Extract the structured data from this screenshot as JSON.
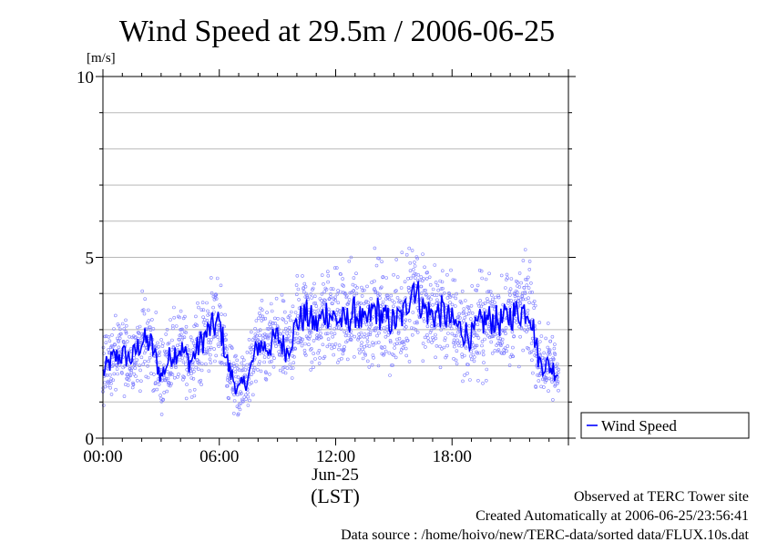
{
  "chart_data": {
    "type": "scatter",
    "title": "Wind Speed at 29.5m / 2006-06-25",
    "y_unit": "[m/s]",
    "ylim": [
      0,
      10
    ],
    "y_major_ticks": [
      0,
      5,
      10
    ],
    "y_grid_step": 1,
    "x_range_hours": [
      0,
      23.5
    ],
    "x_ticks": [
      {
        "hour": 0,
        "label": "00:00"
      },
      {
        "hour": 6,
        "label": "06:00"
      },
      {
        "hour": 12,
        "label": "12:00"
      },
      {
        "hour": 18,
        "label": "18:00"
      }
    ],
    "date_label": "Jun-25",
    "timezone_label": "(LST)",
    "grid": "horizontal",
    "legend": {
      "placement": "right",
      "entries": [
        {
          "name": "Wind Speed",
          "color": "#0000ff"
        }
      ]
    },
    "scatter_color": "#8080ff",
    "line_color": "#0000ff",
    "series": [
      {
        "name": "Wind Speed",
        "x_hours": [
          0.0,
          0.5,
          1.0,
          1.5,
          2.0,
          2.5,
          3.0,
          3.5,
          4.0,
          4.5,
          5.0,
          5.5,
          6.0,
          6.5,
          7.0,
          7.5,
          8.0,
          8.5,
          9.0,
          9.5,
          10.0,
          10.5,
          11.0,
          11.5,
          12.0,
          12.5,
          13.0,
          13.5,
          14.0,
          14.5,
          15.0,
          15.5,
          16.0,
          16.5,
          17.0,
          17.5,
          18.0,
          18.5,
          19.0,
          19.5,
          20.0,
          20.5,
          21.0,
          21.5,
          22.0,
          22.5,
          23.0,
          23.5
        ],
        "values": [
          1.8,
          2.2,
          2.3,
          2.2,
          2.7,
          2.6,
          1.7,
          2.3,
          2.5,
          2.1,
          2.6,
          3.0,
          3.2,
          1.9,
          1.3,
          1.7,
          2.6,
          2.5,
          2.8,
          2.4,
          3.2,
          3.4,
          3.1,
          3.5,
          3.3,
          3.2,
          3.5,
          3.1,
          3.6,
          3.3,
          3.2,
          3.4,
          4.3,
          3.6,
          3.4,
          3.5,
          3.2,
          3.0,
          2.8,
          3.2,
          3.3,
          3.2,
          3.4,
          3.5,
          3.6,
          2.1,
          2.0,
          1.8
        ]
      }
    ],
    "footer_lines": [
      "Observed at TERC Tower site",
      "Created Automatically at 2006-06-25/23:56:41",
      "Data source : /home/hoivo/new/TERC-data/sorted  data/FLUX.10s.dat"
    ]
  }
}
